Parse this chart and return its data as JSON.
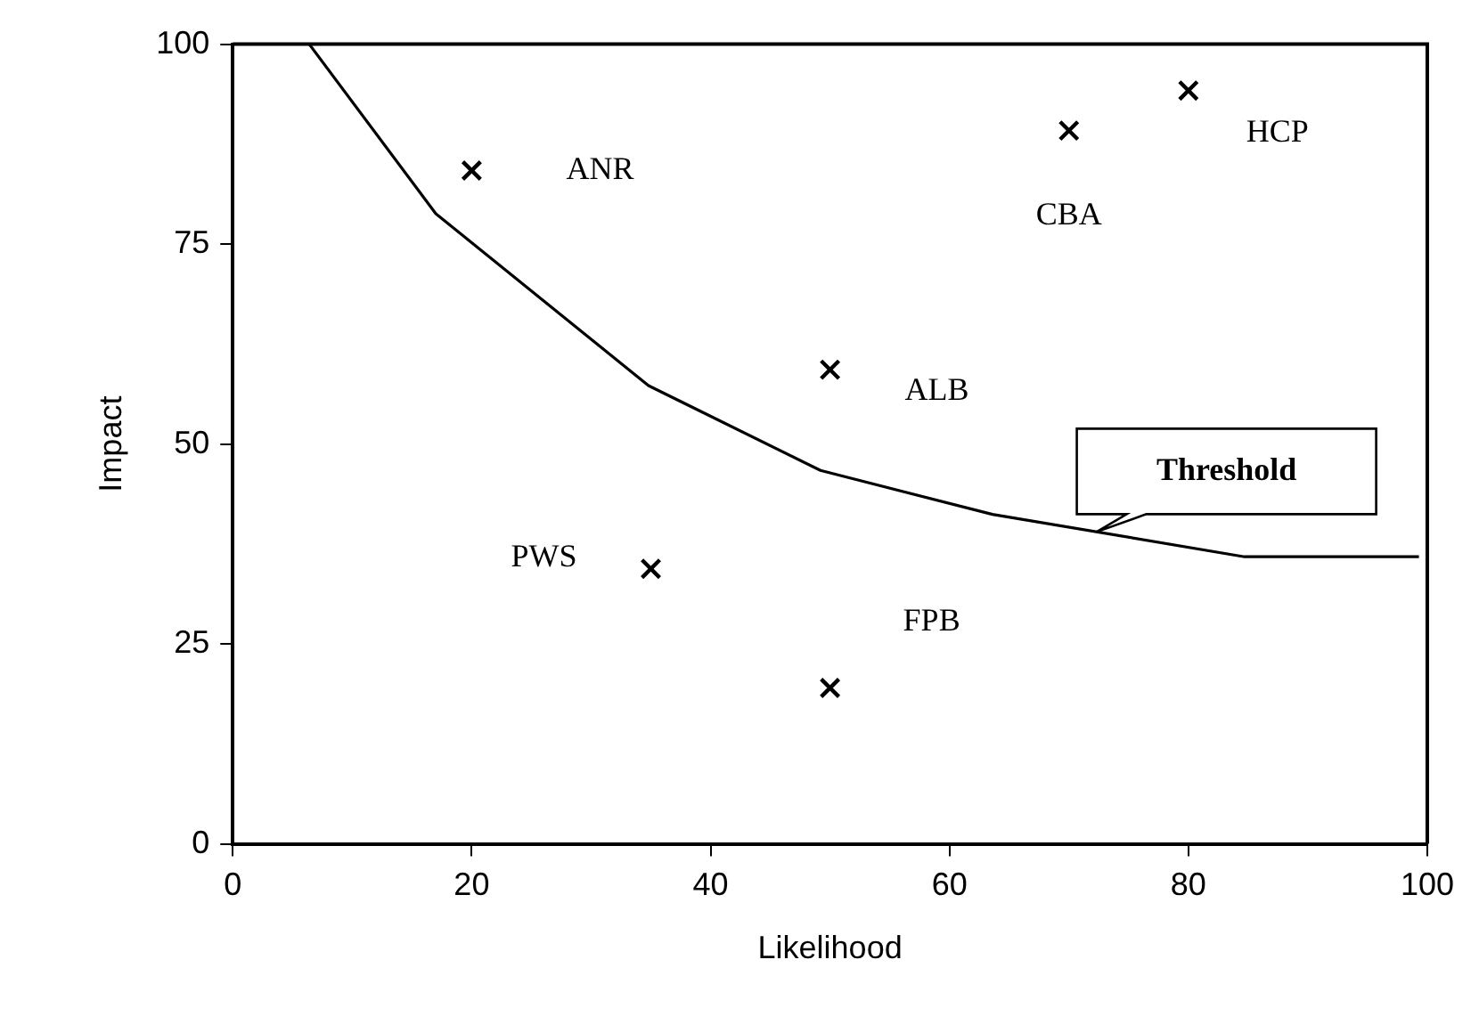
{
  "chart_data": {
    "type": "scatter",
    "xlabel": "Likelihood",
    "ylabel": "Impact",
    "xlim": [
      0,
      100
    ],
    "xticks": [
      0,
      20,
      40,
      60,
      80,
      100
    ],
    "ylim": [
      0,
      100
    ],
    "yticks": [
      0,
      25,
      50,
      75,
      100
    ],
    "grid": false,
    "legend": false,
    "series": [
      {
        "color": "#000000",
        "marker": "cross",
        "x": [
          20,
          70,
          80,
          50,
          35,
          50
        ],
        "values": [
          84.2,
          89.2,
          94.2,
          59.3,
          34.4,
          19.5
        ]
      },
      {
        "type": "line",
        "color": "#000000",
        "marker": "none",
        "x": [
          6.4,
          17,
          34.8,
          49.2,
          63.6,
          84.7,
          99.3
        ],
        "values": [
          100,
          78.8,
          57.3,
          46.7,
          41.2,
          35.9,
          35.9
        ]
      }
    ],
    "annotations": [
      {
        "text": "ANR",
        "x": 20,
        "y": 84.2
      },
      {
        "text": "CBA",
        "x": 70,
        "y": 89.2
      },
      {
        "text": "HCP",
        "x": 80,
        "y": 94.2
      },
      {
        "text": "ALB",
        "x": 50,
        "y": 59.3
      },
      {
        "text": "PWS",
        "x": 35,
        "y": 34.4
      },
      {
        "text": "FPB",
        "x": 50,
        "y": 19.5
      },
      {
        "text": "Threshold",
        "x": 72.3,
        "y": 39
      }
    ]
  }
}
